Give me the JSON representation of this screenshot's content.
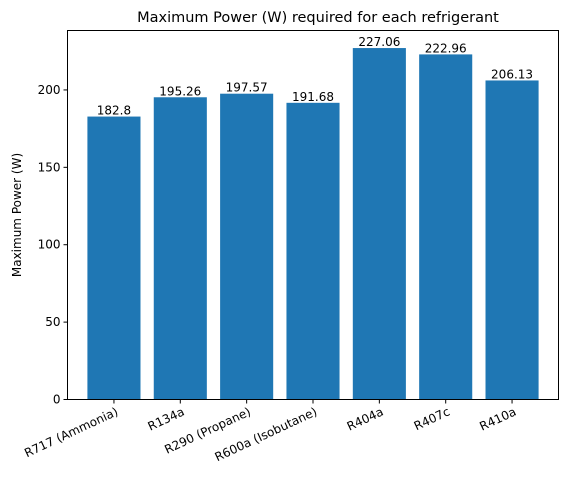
{
  "chart_data": {
    "type": "bar",
    "title": "Maximum Power (W) required for each refrigerant",
    "xlabel": "",
    "ylabel": "Maximum Power (W)",
    "categories": [
      "R717 (Ammonia)",
      "R134a",
      "R290 (Propane)",
      "R600a (Isobutane)",
      "R404a",
      "R407c",
      "R410a"
    ],
    "values": [
      182.8,
      195.26,
      197.57,
      191.68,
      227.06,
      222.96,
      206.13
    ],
    "data_labels": [
      "182.8",
      "195.26",
      "197.57",
      "191.68",
      "227.06",
      "222.96",
      "206.13"
    ],
    "ylim": [
      0,
      238.4
    ],
    "yticks": [
      0,
      50,
      100,
      150,
      200
    ],
    "ytick_labels": [
      "0",
      "50",
      "100",
      "150",
      "200"
    ],
    "grid": false,
    "bar_color": "#1f77b4"
  }
}
